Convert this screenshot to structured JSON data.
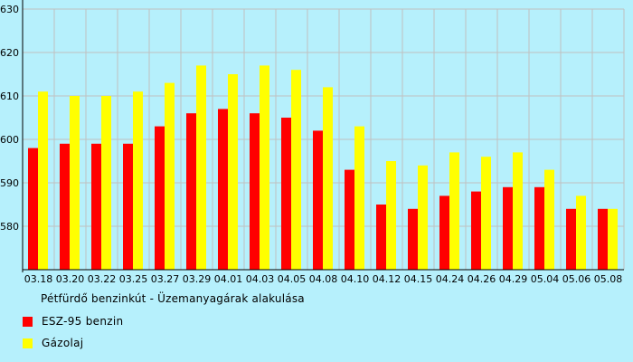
{
  "chart_data": {
    "type": "bar",
    "title": "Pétfürdő benzinkút - Üzemanyagárak alakulása",
    "categories": [
      "03.18",
      "03.20",
      "03.22",
      "03.25",
      "03.27",
      "03.29",
      "04.01",
      "04.03",
      "04.05",
      "04.08",
      "04.10",
      "04.12",
      "04.15",
      "04.24",
      "04.26",
      "04.29",
      "05.04",
      "05.06",
      "05.08"
    ],
    "series": [
      {
        "name": "ESZ-95 benzin",
        "color": "#ff0000",
        "values": [
          598,
          599,
          599,
          599,
          603,
          606,
          607,
          606,
          605,
          602,
          593,
          585,
          584,
          587,
          588,
          589,
          589,
          584,
          584
        ]
      },
      {
        "name": "Gázolaj",
        "color": "#ffff00",
        "values": [
          611,
          610,
          610,
          611,
          613,
          617,
          615,
          617,
          616,
          612,
          603,
          595,
          594,
          597,
          596,
          597,
          593,
          587,
          584
        ]
      }
    ],
    "yticks": [
      580,
      590,
      600,
      610,
      620,
      630
    ],
    "ylim": [
      570,
      630
    ],
    "grid": true,
    "legend_position": "bottom-left",
    "plot_background": "#b6f0fc",
    "grid_color": "#c0c0c0"
  }
}
